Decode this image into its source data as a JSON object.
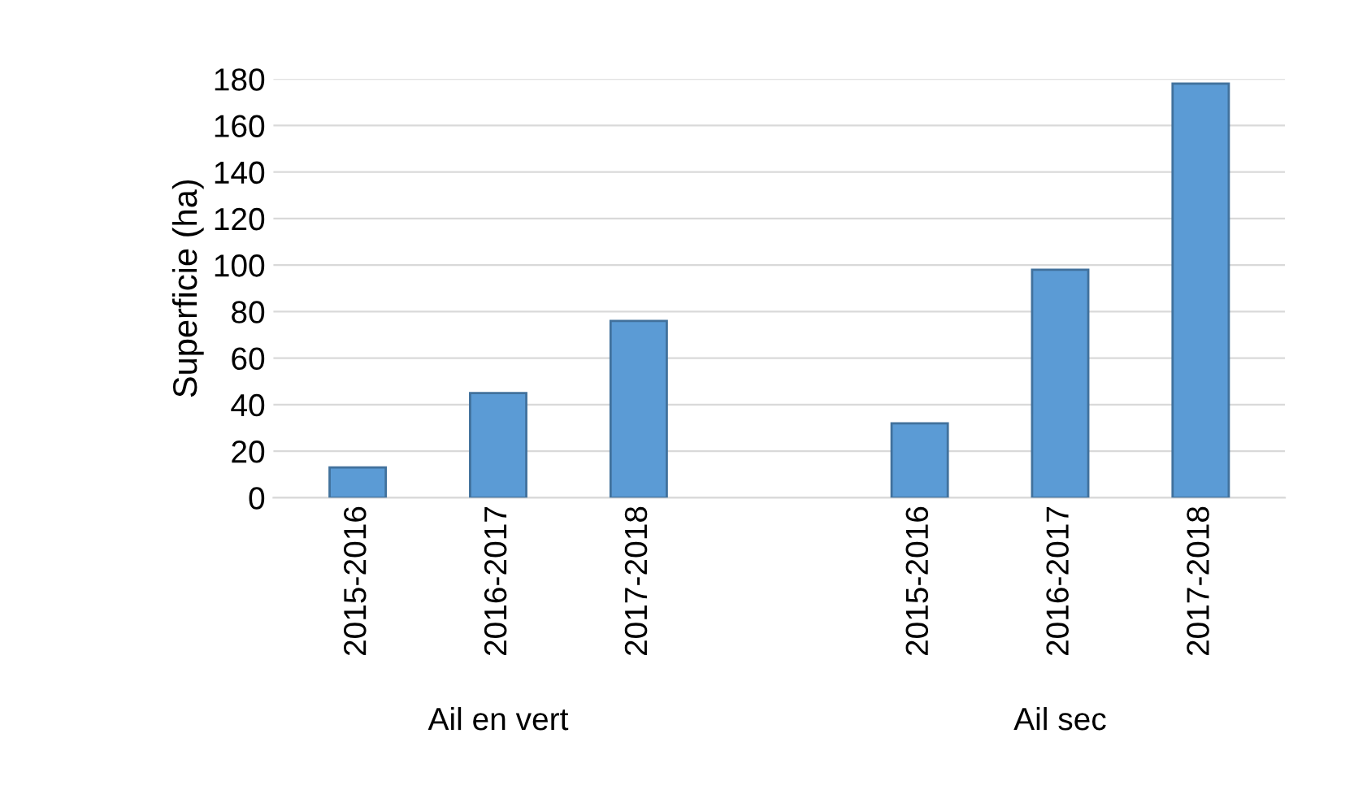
{
  "chart_data": {
    "type": "bar",
    "ylabel": "Superficie (ha)",
    "categories": [
      "2015-2016",
      "2016-2017",
      "2017-2018",
      null,
      "2015-2016",
      "2016-2017",
      "2017-2018"
    ],
    "values": [
      13,
      45,
      76,
      null,
      32,
      98,
      178
    ],
    "color": "#5b9bd5",
    "ylim": [
      0,
      180
    ],
    "yticks": [
      0,
      20,
      40,
      60,
      80,
      100,
      120,
      140,
      160,
      180
    ],
    "grid": "y",
    "annotations": [
      "Ail en vert",
      "Ail sec"
    ]
  }
}
